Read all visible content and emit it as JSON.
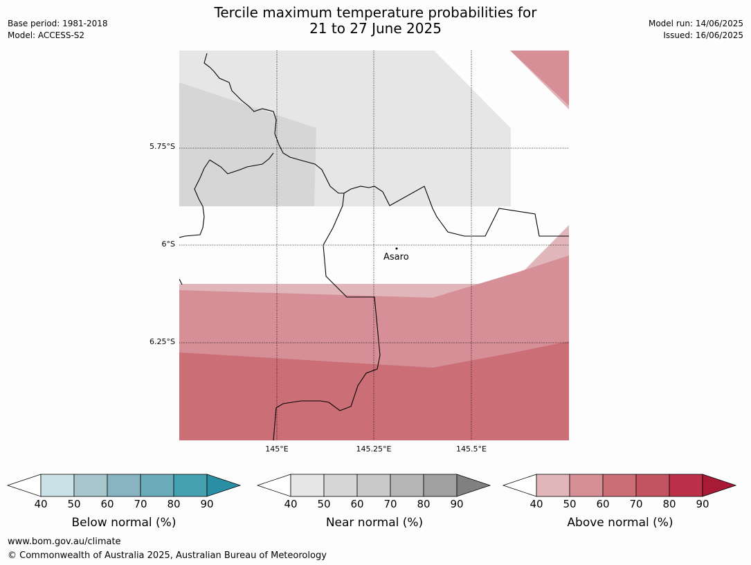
{
  "header": {
    "title_line1": "Tercile maximum temperature probabilities for",
    "title_line2": "21 to 27 June 2025",
    "base_period": "Base period: 1981-2018",
    "model": "Model: ACCESS-S2",
    "model_run": "Model run: 14/06/2025",
    "issued": "Issued: 16/06/2025"
  },
  "map": {
    "lat_labels": [
      "5.75°S",
      "6°S",
      "6.25°S"
    ],
    "lon_labels": [
      "145°E",
      "145.25°E",
      "145.5°E"
    ],
    "place": "Asaro"
  },
  "legends": [
    {
      "title": "Below normal (%)",
      "ticks": [
        "40",
        "50",
        "60",
        "70",
        "80",
        "90"
      ],
      "colors": [
        "#cae2e7",
        "#a7c6cb",
        "#88b4c1",
        "#6aacba",
        "#45a0b0",
        "#2a8ea4"
      ]
    },
    {
      "title": "Near normal (%)",
      "ticks": [
        "40",
        "50",
        "60",
        "70",
        "80",
        "90"
      ],
      "colors": [
        "#e6e6e6",
        "#d6d6d6",
        "#c9c9c9",
        "#b6b6b6",
        "#a0a0a0",
        "#808080"
      ]
    },
    {
      "title": "Above normal (%)",
      "ticks": [
        "40",
        "50",
        "60",
        "70",
        "80",
        "90"
      ],
      "colors": [
        "#e1b6ba",
        "#d68f97",
        "#cb6e76",
        "#c4545f",
        "#bc3049",
        "#a81a36"
      ]
    }
  ],
  "footer": {
    "url": "www.bom.gov.au/climate",
    "copyright": "© Commonwealth of Australia 2025, Australian Bureau of Meteorology"
  }
}
